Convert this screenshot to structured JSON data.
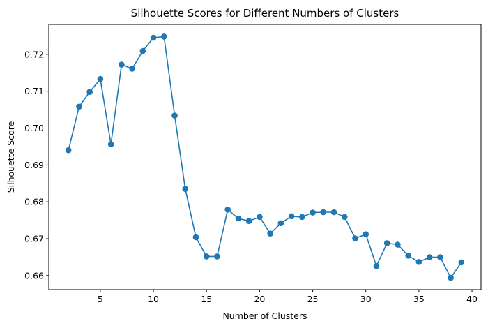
{
  "chart_data": {
    "type": "line",
    "title": "Silhouette Scores for Different Numbers of Clusters",
    "xlabel": "Number of Clusters",
    "ylabel": "Silhouette Score",
    "xlim": [
      0.15,
      40.85
    ],
    "ylim": [
      0.6562,
      0.7281
    ],
    "xticks": [
      5,
      10,
      15,
      20,
      25,
      30,
      35,
      40
    ],
    "yticks": [
      0.66,
      0.67,
      0.68,
      0.69,
      0.7,
      0.71,
      0.72
    ],
    "ytick_labels": [
      "0.66",
      "0.67",
      "0.68",
      "0.69",
      "0.70",
      "0.71",
      "0.72"
    ],
    "grid": false,
    "color": "#1f77b4",
    "marker": "circle",
    "series": [
      {
        "x": [
          2,
          3,
          4,
          5,
          6,
          7,
          8,
          9,
          10,
          11,
          12,
          13,
          14,
          15,
          16,
          17,
          18,
          19,
          20,
          21,
          22,
          23,
          24,
          25,
          26,
          27,
          28,
          29,
          30,
          31,
          32,
          33,
          34,
          35,
          36,
          37,
          38,
          39
        ],
        "values": [
          0.694,
          0.7058,
          0.7098,
          0.7133,
          0.6956,
          0.7172,
          0.7161,
          0.7209,
          0.7245,
          0.7248,
          0.7034,
          0.6835,
          0.6704,
          0.6652,
          0.6652,
          0.6779,
          0.6755,
          0.6748,
          0.6759,
          0.6714,
          0.6742,
          0.6761,
          0.6759,
          0.6771,
          0.6772,
          0.6772,
          0.6759,
          0.6701,
          0.6712,
          0.6626,
          0.6688,
          0.6684,
          0.6654,
          0.6637,
          0.665,
          0.665,
          0.6594,
          0.6636
        ]
      }
    ]
  }
}
